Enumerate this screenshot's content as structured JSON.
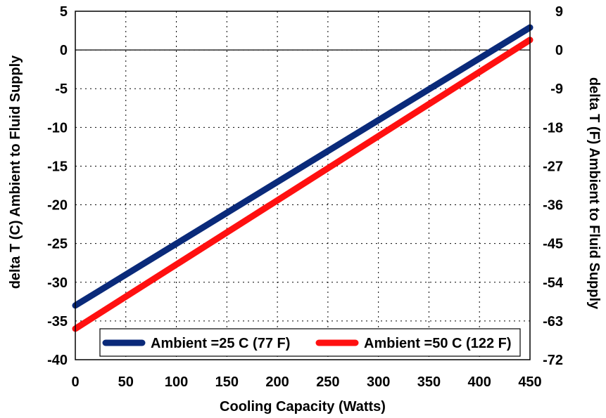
{
  "chart_data": {
    "type": "line",
    "xlabel": "Cooling Capacity (Watts)",
    "ylabel": "delta T (C) Ambient to Fluid Supply",
    "y2label": "delta T (F) Ambient to Fluid Supply",
    "xlim": [
      0,
      450
    ],
    "ylim": [
      -40,
      5
    ],
    "y2lim": [
      -72,
      9
    ],
    "x_ticks": [
      "0",
      "50",
      "100",
      "150",
      "200",
      "250",
      "300",
      "350",
      "400",
      "450"
    ],
    "y_ticks": [
      "5",
      "0",
      "-5",
      "-10",
      "-15",
      "-20",
      "-25",
      "-30",
      "-35",
      "-40"
    ],
    "y2_ticks": [
      "9",
      "0",
      "-9",
      "-18",
      "-27",
      "-36",
      "-45",
      "-54",
      "-63",
      "-72"
    ],
    "grid": true,
    "zero_line": true,
    "legend_position": "bottom-right",
    "series": [
      {
        "name": "Ambient =25 C (77 F)",
        "color": "#0a2a7a",
        "x": [
          0,
          450
        ],
        "y": [
          -33.0,
          2.9
        ]
      },
      {
        "name": "Ambient =50 C (122 F)",
        "color": "#ff1010",
        "x": [
          0,
          450
        ],
        "y": [
          -36.0,
          1.3
        ]
      }
    ]
  }
}
